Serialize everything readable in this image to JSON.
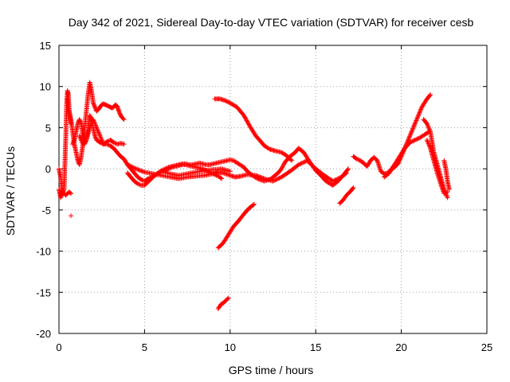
{
  "chart_data": {
    "type": "scatter",
    "title": "Day 342 of 2021, Sidereal Day-to-day VTEC variation (SDTVAR) for receiver cesb",
    "xlabel": "GPS time / hours",
    "ylabel": "SDTVAR / TECUs",
    "xlim": [
      0,
      25
    ],
    "ylim": [
      -20,
      15
    ],
    "xticks": [
      0,
      5,
      10,
      15,
      20,
      25
    ],
    "yticks": [
      -20,
      -15,
      -10,
      -5,
      0,
      5,
      10,
      15
    ],
    "grid": true,
    "marker": "+",
    "color": "#ff0000",
    "series": [
      {
        "name": "t1",
        "x": [
          0.0,
          0.1,
          0.2,
          0.3,
          0.4,
          0.45,
          0.5,
          0.55,
          0.6,
          0.7
        ],
        "y": [
          0.0,
          -1.0,
          -3.0,
          -2.5,
          4.0,
          8.0,
          9.5,
          9.0,
          7.0,
          5.5
        ]
      },
      {
        "name": "t1b",
        "x": [
          0.0,
          0.1,
          0.2,
          0.3,
          0.4,
          0.5,
          0.6,
          0.7
        ],
        "y": [
          -2.5,
          -3.5,
          -3.0,
          -3.0,
          -3.2,
          -3.0,
          -2.8,
          -3.0
        ]
      },
      {
        "name": "t2",
        "x": [
          0.5,
          0.6,
          0.7,
          0.8,
          0.9,
          1.0,
          1.1,
          1.2,
          1.3,
          1.4,
          1.5,
          1.6,
          1.7,
          1.8,
          1.9,
          2.0,
          2.1,
          2.2,
          2.3,
          2.4,
          2.5,
          2.6,
          2.7,
          2.8,
          2.9,
          3.0,
          3.1,
          3.2,
          3.3,
          3.4,
          3.5,
          3.6,
          3.7,
          3.8
        ],
        "y": [
          8.5,
          7.0,
          6.0,
          4.5,
          3.0,
          2.0,
          1.0,
          0.5,
          1.5,
          3.0,
          5.0,
          7.0,
          9.0,
          10.5,
          9.5,
          8.0,
          7.5,
          7.0,
          7.2,
          7.5,
          7.8,
          7.9,
          7.8,
          7.7,
          7.6,
          7.5,
          7.4,
          7.5,
          7.8,
          7.6,
          7.0,
          6.5,
          6.2,
          6.0
        ]
      },
      {
        "name": "t3",
        "x": [
          0.8,
          0.9,
          1.0,
          1.1,
          1.2,
          1.3,
          1.4,
          1.5,
          1.6,
          1.7,
          1.8,
          1.9,
          2.0,
          2.1,
          2.2,
          2.4,
          2.6,
          2.8,
          3.0,
          3.2,
          3.4,
          3.6,
          3.8
        ],
        "y": [
          3.0,
          3.5,
          4.5,
          5.5,
          6.0,
          5.5,
          4.0,
          3.0,
          3.5,
          5.0,
          6.5,
          6.0,
          5.0,
          4.0,
          3.5,
          3.2,
          3.0,
          3.3,
          3.5,
          3.2,
          3.0,
          3.1,
          3.0
        ]
      },
      {
        "name": "t4",
        "x": [
          1.2,
          1.4,
          1.6,
          1.8,
          2.0,
          2.2,
          2.4,
          2.6,
          2.8,
          3.0,
          3.2,
          3.4,
          3.6,
          3.8,
          4.0,
          4.2,
          4.4,
          4.6,
          4.8,
          5.0,
          5.2,
          5.4,
          5.6,
          5.8,
          6.0,
          6.2,
          6.4,
          6.6,
          6.8,
          7.0,
          7.2,
          7.4,
          7.6,
          7.8,
          8.0,
          8.2,
          8.4,
          8.6,
          8.8,
          9.0,
          9.2,
          9.4,
          9.5
        ],
        "y": [
          4.0,
          3.0,
          3.5,
          5.0,
          6.0,
          5.0,
          4.0,
          3.0,
          3.0,
          2.8,
          2.5,
          2.0,
          1.5,
          1.2,
          0.5,
          0.0,
          -0.5,
          -1.0,
          -1.3,
          -1.5,
          -1.2,
          -1.0,
          -0.8,
          -0.5,
          -0.3,
          -0.2,
          0.0,
          0.2,
          0.3,
          0.4,
          0.5,
          0.5,
          0.4,
          0.3,
          0.2,
          0.1,
          0.0,
          -0.2,
          -0.4,
          -0.6,
          -0.8,
          -1.0,
          -1.2
        ]
      },
      {
        "name": "t5",
        "x": [
          4.0,
          4.2,
          4.4,
          4.6,
          4.8,
          5.0,
          5.2,
          5.4,
          5.6,
          5.8,
          6.0,
          6.2,
          6.4,
          6.6,
          6.8,
          7.0,
          7.2,
          7.4,
          7.6,
          7.8,
          8.0,
          8.2,
          8.4,
          8.6,
          8.8,
          9.0,
          9.2,
          9.4,
          9.6,
          9.8,
          10.0,
          10.2,
          10.5,
          10.8,
          11.0,
          11.3,
          11.6,
          12.0,
          12.4,
          12.8,
          13.0,
          13.2,
          13.5,
          13.8,
          14.0,
          14.3,
          14.6,
          15.0,
          15.3,
          15.6,
          16.0,
          16.3,
          16.6,
          16.9
        ],
        "y": [
          -0.5,
          -1.0,
          -1.5,
          -1.8,
          -2.0,
          -2.0,
          -1.6,
          -1.2,
          -0.8,
          -0.5,
          -0.2,
          0.0,
          0.2,
          0.3,
          0.4,
          0.5,
          0.6,
          0.6,
          0.5,
          0.5,
          0.6,
          0.7,
          0.6,
          0.5,
          0.5,
          0.6,
          0.7,
          0.8,
          0.9,
          1.0,
          1.1,
          1.0,
          0.6,
          0.2,
          -0.3,
          -0.8,
          -1.2,
          -1.5,
          -1.2,
          -0.5,
          0.0,
          0.8,
          1.5,
          2.0,
          2.5,
          2.0,
          1.0,
          -0.2,
          -0.8,
          -1.5,
          -2.0,
          -1.5,
          -0.8,
          0.0
        ]
      },
      {
        "name": "t6",
        "x": [
          4.0,
          4.5,
          5.0,
          5.5,
          6.0,
          6.5,
          7.0,
          7.5,
          8.0,
          8.5,
          9.0,
          9.3,
          9.6,
          10.0,
          10.3,
          10.6,
          11.0,
          11.5,
          12.0,
          12.5,
          13.0,
          13.5,
          14.0,
          14.5,
          15.0,
          15.5,
          16.0,
          16.5,
          16.8
        ],
        "y": [
          0.5,
          0.0,
          -0.4,
          -0.6,
          -0.8,
          -1.0,
          -1.2,
          -1.0,
          -0.9,
          -0.8,
          -0.6,
          -0.4,
          -0.5,
          -0.8,
          -1.0,
          -0.9,
          -0.7,
          -0.8,
          -1.2,
          -1.5,
          -1.0,
          -0.3,
          0.5,
          1.0,
          0.0,
          -0.8,
          -1.5,
          -1.0,
          -0.5
        ]
      },
      {
        "name": "t7",
        "x": [
          6.0,
          6.5,
          7.0,
          7.5,
          8.0,
          8.5,
          9.0,
          9.5,
          10.0
        ],
        "y": [
          -0.3,
          -0.6,
          -0.8,
          -0.6,
          -0.4,
          -0.2,
          -0.1,
          0.0,
          -0.3
        ]
      },
      {
        "name": "t8",
        "x": [
          9.1,
          9.4,
          9.7,
          10.0,
          10.4,
          10.8,
          11.2,
          11.5,
          11.8,
          12.0,
          12.3,
          12.6,
          13.0,
          13.3,
          13.6
        ],
        "y": [
          8.5,
          8.5,
          8.3,
          8.0,
          7.5,
          6.5,
          5.0,
          4.0,
          3.3,
          2.8,
          2.4,
          2.2,
          2.0,
          1.6,
          1.0
        ]
      },
      {
        "name": "t9",
        "x": [
          9.3,
          9.6,
          9.9,
          10.2,
          10.5,
          10.8,
          11.1,
          11.4
        ],
        "y": [
          -9.6,
          -9.0,
          -8.0,
          -7.0,
          -6.3,
          -5.5,
          -4.8,
          -4.3
        ]
      },
      {
        "name": "t10",
        "x": [
          9.3,
          9.45,
          9.6,
          9.75,
          9.9
        ],
        "y": [
          -17.0,
          -16.5,
          -16.3,
          -16.0,
          -15.7
        ]
      },
      {
        "name": "t11",
        "x": [
          16.4,
          16.6,
          16.8,
          17.0,
          17.2
        ],
        "y": [
          -4.2,
          -3.8,
          -3.2,
          -2.8,
          -2.3
        ]
      },
      {
        "name": "t12",
        "x": [
          17.2,
          17.4,
          17.6,
          17.8,
          18.0,
          18.2,
          18.4,
          18.6,
          18.8,
          19.0,
          19.2,
          19.4,
          19.6,
          19.8
        ],
        "y": [
          1.5,
          1.2,
          1.0,
          0.7,
          0.3,
          1.0,
          1.4,
          1.0,
          -0.3,
          -0.6,
          -0.5,
          -0.1,
          0.4,
          0.6
        ]
      },
      {
        "name": "t13",
        "x": [
          19.5,
          19.8,
          20.0,
          20.3,
          20.6,
          20.9,
          21.2,
          21.5,
          21.7
        ],
        "y": [
          0.0,
          0.6,
          1.5,
          3.0,
          4.5,
          6.0,
          7.5,
          8.5,
          9.0
        ]
      },
      {
        "name": "t14",
        "x": [
          19.0,
          19.3,
          19.6,
          19.9,
          20.2,
          20.5,
          20.8,
          21.1,
          21.4,
          21.6
        ],
        "y": [
          -1.0,
          -0.5,
          0.5,
          1.5,
          2.5,
          3.2,
          3.5,
          3.8,
          4.2,
          4.5
        ]
      },
      {
        "name": "t15",
        "x": [
          21.3,
          21.5,
          21.7,
          21.9,
          22.1,
          22.3,
          22.5,
          22.7
        ],
        "y": [
          6.0,
          5.5,
          4.5,
          2.0,
          0.5,
          -1.0,
          -2.5,
          -3.5
        ]
      },
      {
        "name": "t16",
        "x": [
          21.5,
          21.7,
          21.9,
          22.1,
          22.3,
          22.5,
          22.7
        ],
        "y": [
          3.5,
          2.5,
          1.0,
          -0.5,
          -1.8,
          -3.0,
          -2.8
        ]
      },
      {
        "name": "t17",
        "x": [
          22.5,
          22.6,
          22.7,
          22.8
        ],
        "y": [
          1.0,
          0.0,
          -1.5,
          -2.5
        ]
      },
      {
        "name": "outlier",
        "x": [
          0.7
        ],
        "y": [
          -5.7
        ]
      }
    ]
  }
}
